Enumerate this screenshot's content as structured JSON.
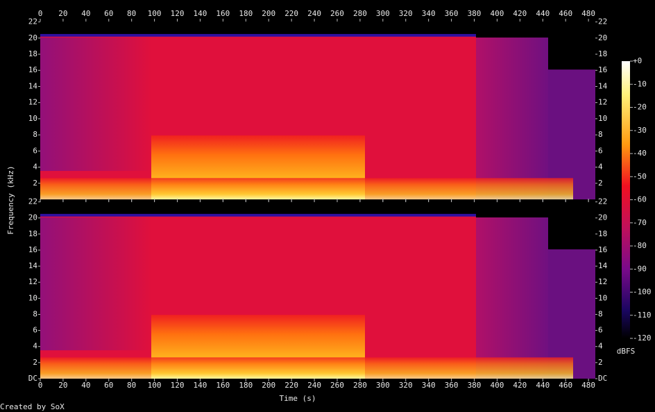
{
  "chart_data": {
    "type": "spectrogram",
    "xlabel": "Time (s)",
    "ylabel": "Frequency (kHz)",
    "credit": "Created by SoX",
    "xlim": [
      0,
      486
    ],
    "xticks": [
      0,
      20,
      40,
      60,
      80,
      100,
      120,
      140,
      160,
      180,
      200,
      220,
      240,
      260,
      280,
      300,
      320,
      340,
      360,
      380,
      400,
      420,
      440,
      460,
      480
    ],
    "channels": [
      {
        "ylim": [
          0,
          22.05
        ],
        "yticks": [
          2,
          4,
          6,
          8,
          10,
          12,
          14,
          16,
          18,
          20,
          22
        ]
      },
      {
        "ylim": [
          0,
          22.05
        ],
        "yticks": [
          {
            "value": 0,
            "label": "DC"
          },
          2,
          4,
          6,
          8,
          10,
          12,
          14,
          16,
          18,
          20,
          22
        ]
      }
    ],
    "colorbar": {
      "label": "dBFS",
      "lim": [
        -120,
        0
      ],
      "ticks": [
        {
          "value": 0,
          "label": "+0"
        },
        -10,
        -20,
        -30,
        -40,
        -50,
        -60,
        -70,
        -80,
        -90,
        -100,
        -110,
        -120
      ]
    }
  }
}
